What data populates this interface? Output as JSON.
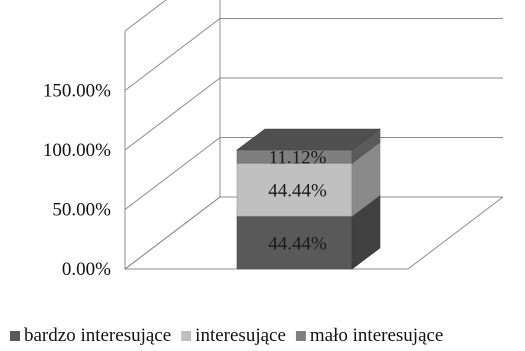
{
  "chart_data": {
    "type": "bar",
    "stacked": true,
    "three_d": true,
    "categories": [
      ""
    ],
    "series": [
      {
        "name": "bardzo interesujące",
        "values": [
          44.44
        ],
        "label": "44.44%",
        "color": "#595959"
      },
      {
        "name": "interesujące",
        "values": [
          44.44
        ],
        "label": "44.44%",
        "color": "#c0c0c0"
      },
      {
        "name": "mało interesujące",
        "values": [
          11.12
        ],
        "label": "11.12%",
        "color": "#7f7f7f"
      }
    ],
    "y_ticks": [
      {
        "value": 0,
        "label": "0.00%"
      },
      {
        "value": 50,
        "label": "50.00%"
      },
      {
        "value": 100,
        "label": "100.00%"
      },
      {
        "value": 150,
        "label": "150.00%"
      }
    ],
    "ylim": [
      0,
      200
    ],
    "grid": true,
    "legend_position": "bottom",
    "title": "",
    "xlabel": "",
    "ylabel": ""
  }
}
